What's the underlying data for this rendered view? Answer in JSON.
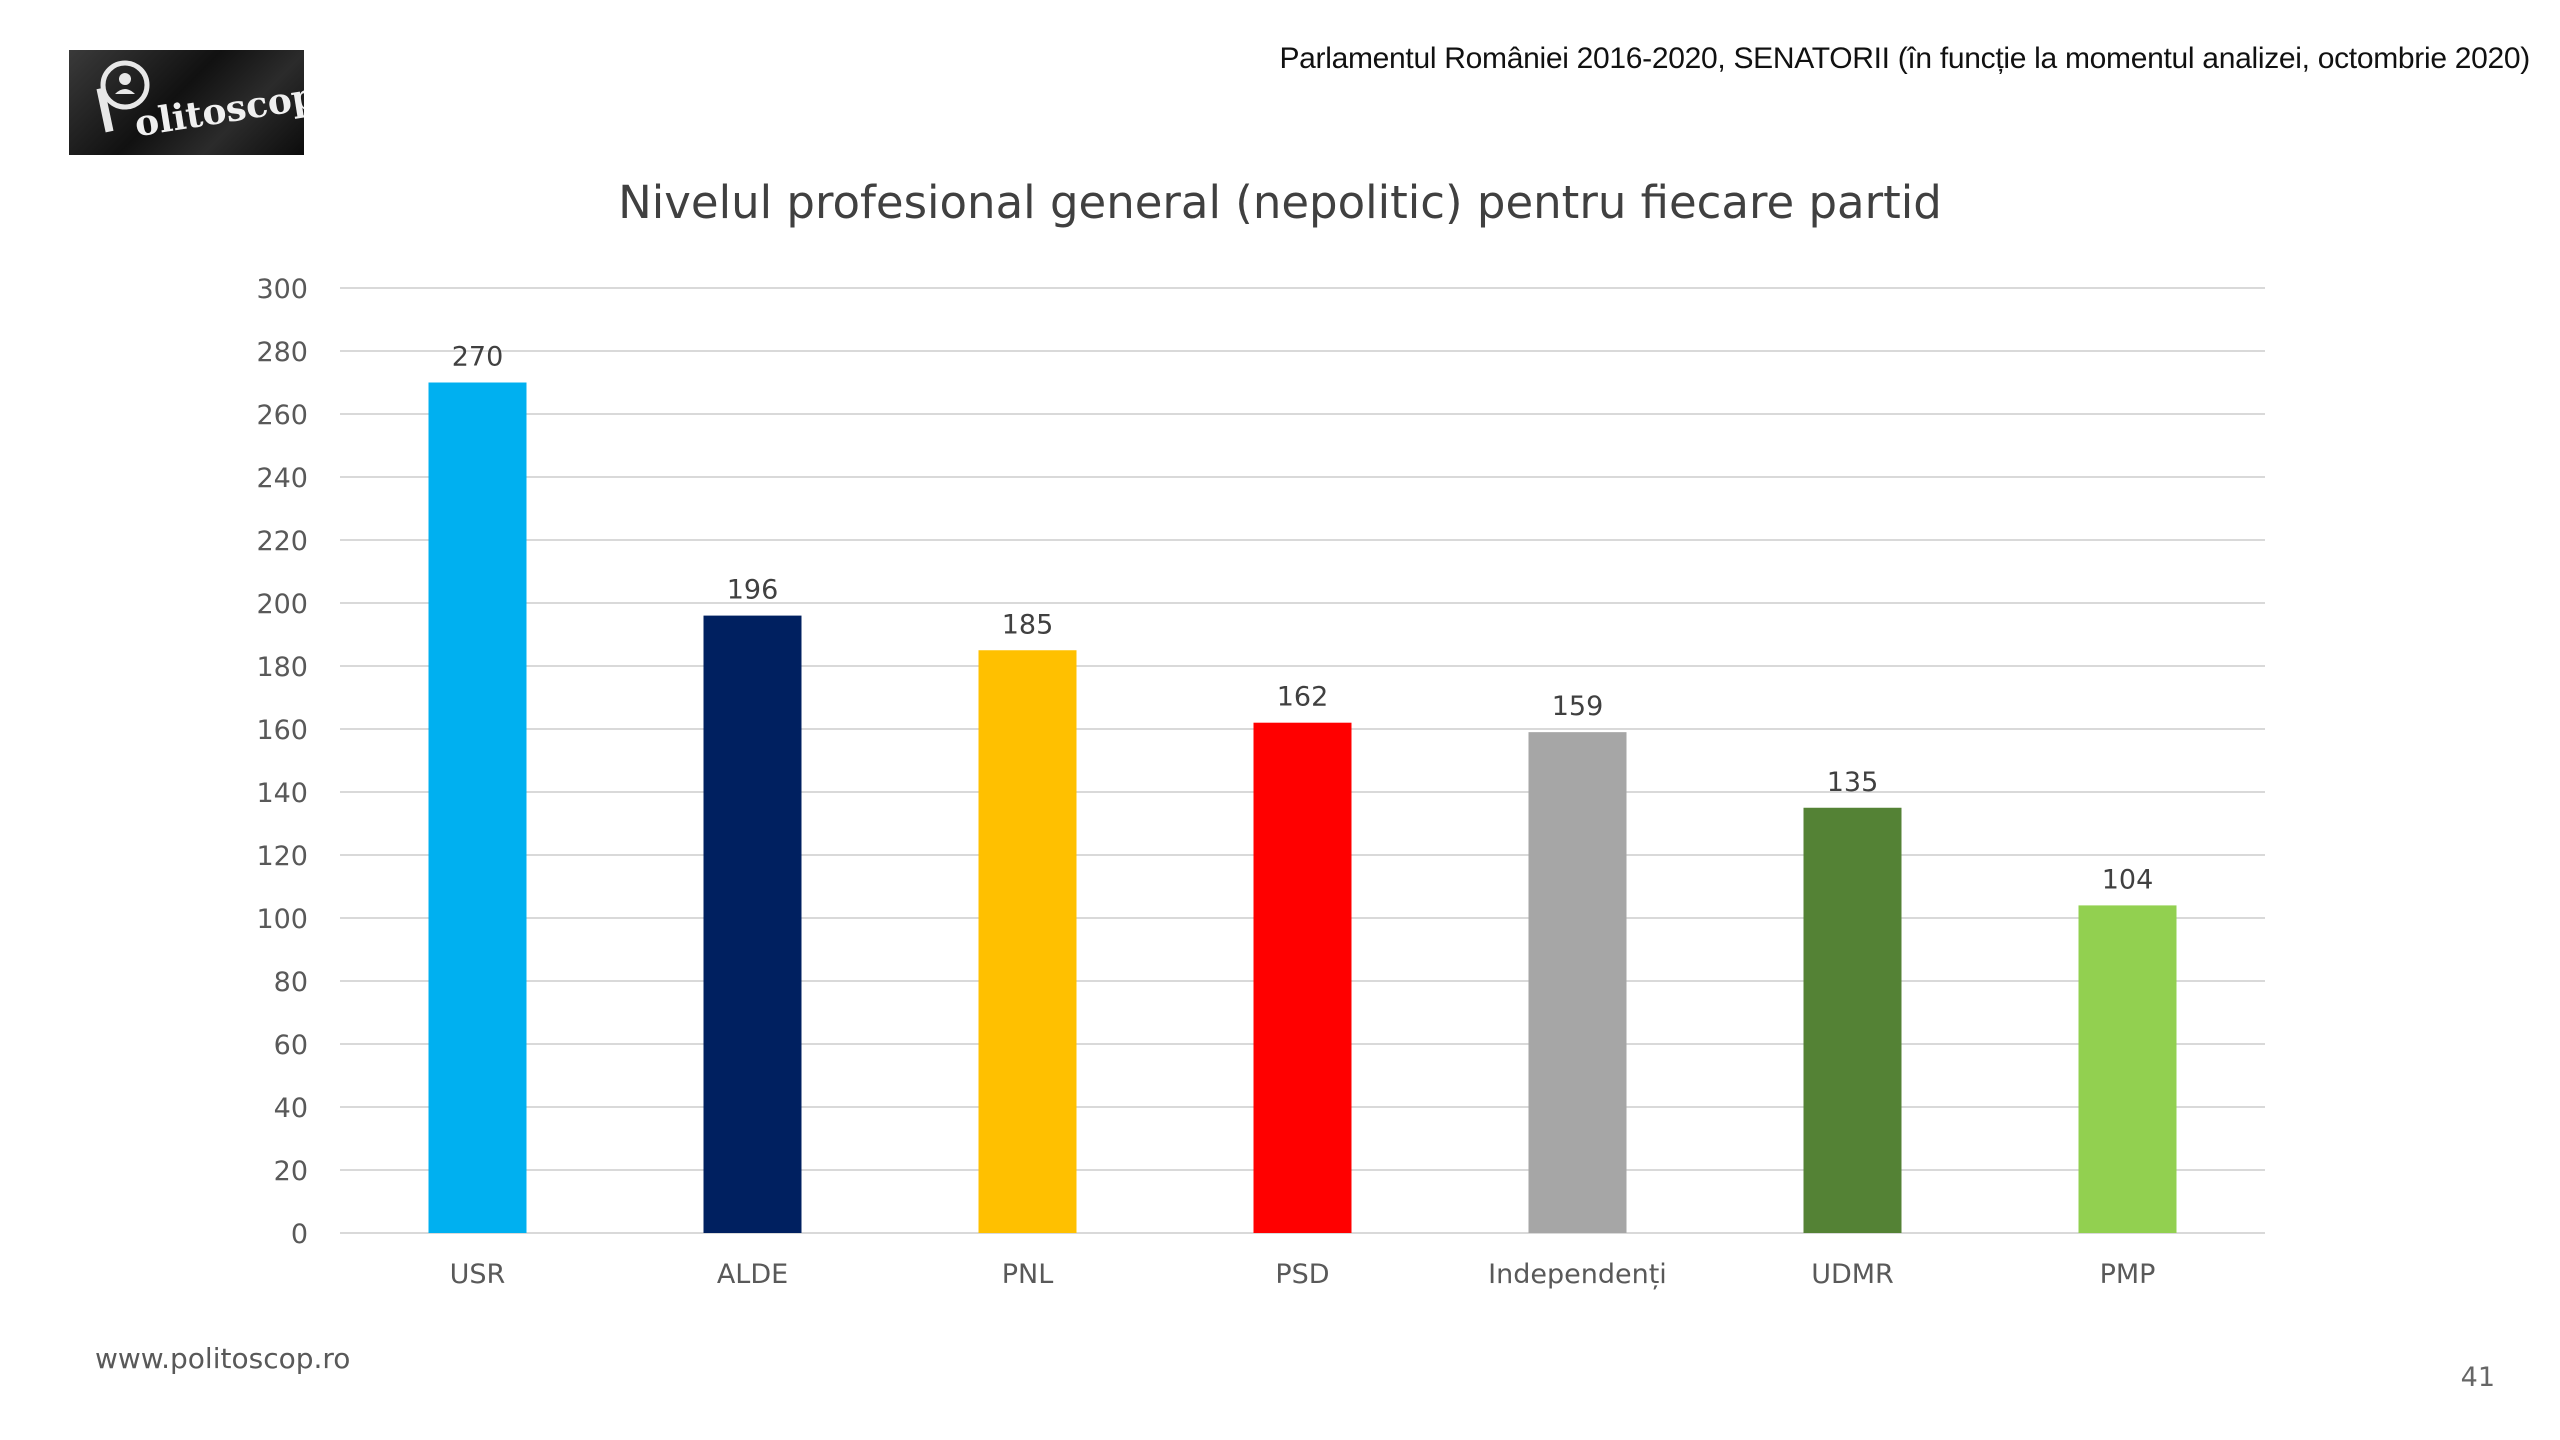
{
  "header": {
    "note": "Parlamentul României 2016-2020, SENATORII (în funcție la momentul analizei, octombrie 2020)"
  },
  "logo": {
    "text": "Politoscop"
  },
  "chart_data": {
    "type": "bar",
    "title": "Nivelul profesional general (nepolitic) pentru fiecare partid",
    "xlabel": "",
    "ylabel": "",
    "categories": [
      "USR",
      "ALDE",
      "PNL",
      "PSD",
      "Independenți",
      "UDMR",
      "PMP"
    ],
    "values": [
      270,
      196,
      185,
      162,
      159,
      135,
      104
    ],
    "data_labels": [
      "270",
      "196",
      "185",
      "162",
      "159",
      "135",
      "104"
    ],
    "colors": [
      "#00B0F0",
      "#002060",
      "#FFC000",
      "#FF0000",
      "#A6A6A6",
      "#548235",
      "#92D050"
    ],
    "ylim": [
      0,
      300
    ],
    "yticks": [
      "0",
      "20",
      "40",
      "60",
      "80",
      "100",
      "120",
      "140",
      "160",
      "180",
      "200",
      "220",
      "240",
      "260",
      "280",
      "300"
    ],
    "grid": true,
    "legend": "none"
  },
  "footer": {
    "url": "www.politoscop.ro",
    "page_number": "41"
  }
}
